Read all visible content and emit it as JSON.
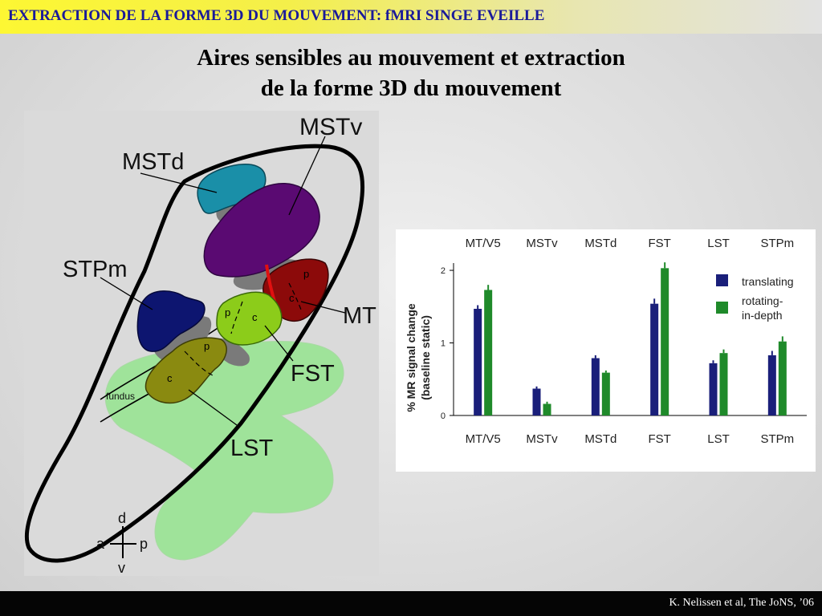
{
  "header": {
    "title": "EXTRACTION DE LA FORME 3D DU MOUVEMENT: fMRI SINGE EVEILLE"
  },
  "slide": {
    "title_line1": "Aires sensibles au mouvement et extraction",
    "title_line2": "de la forme 3D du mouvement"
  },
  "brain_map": {
    "labels": {
      "mstv": "MSTv",
      "mstd": "MSTd",
      "stpm": "STPm",
      "mt": "MT",
      "fst": "FST",
      "lst": "LST",
      "fundus": "fundus"
    },
    "subregion_labels": [
      "p",
      "c",
      "p",
      "c",
      "p",
      "c"
    ],
    "orientation": {
      "d": "d",
      "a": "a",
      "p": "p",
      "v": "v"
    },
    "colors": {
      "mstv": "#5a0a72",
      "mstd": "#1a8fa8",
      "stpm": "#0d1570",
      "mt": "#8c0a0a",
      "fst": "#8ccc1a",
      "lst_c": "#8a8a10",
      "lst_region": "#9fe39a",
      "gray": "#7a7a7a"
    }
  },
  "chart_data": {
    "type": "bar",
    "categories": [
      "MT/V5",
      "MSTv",
      "MSTd",
      "FST",
      "LST",
      "STPm"
    ],
    "top_labels": [
      "MT/V5",
      "MSTv",
      "MSTd",
      "FST",
      "LST",
      "STPm"
    ],
    "ylabel_line1": "% MR signal change",
    "ylabel_line2": "(baseline static)",
    "ylim": [
      0,
      2.1
    ],
    "yticks": [
      "0",
      "1",
      "2"
    ],
    "series": [
      {
        "name": "translating",
        "color": "#1a1f7a",
        "values": [
          1.47,
          0.37,
          0.79,
          1.54,
          0.72,
          0.83
        ],
        "errors": [
          0.05,
          0.03,
          0.04,
          0.07,
          0.04,
          0.06
        ]
      },
      {
        "name": "rotating-in-depth",
        "legend_line1": "rotating-",
        "legend_line2": "in-depth",
        "color": "#1f8a2a",
        "values": [
          1.73,
          0.16,
          0.59,
          2.03,
          0.86,
          1.02
        ],
        "errors": [
          0.07,
          0.03,
          0.03,
          0.08,
          0.05,
          0.07
        ]
      }
    ],
    "legend_position": "top-right",
    "grid": false
  },
  "footer": {
    "citation": "K. Nelissen et al, The JoNS, ’06"
  }
}
